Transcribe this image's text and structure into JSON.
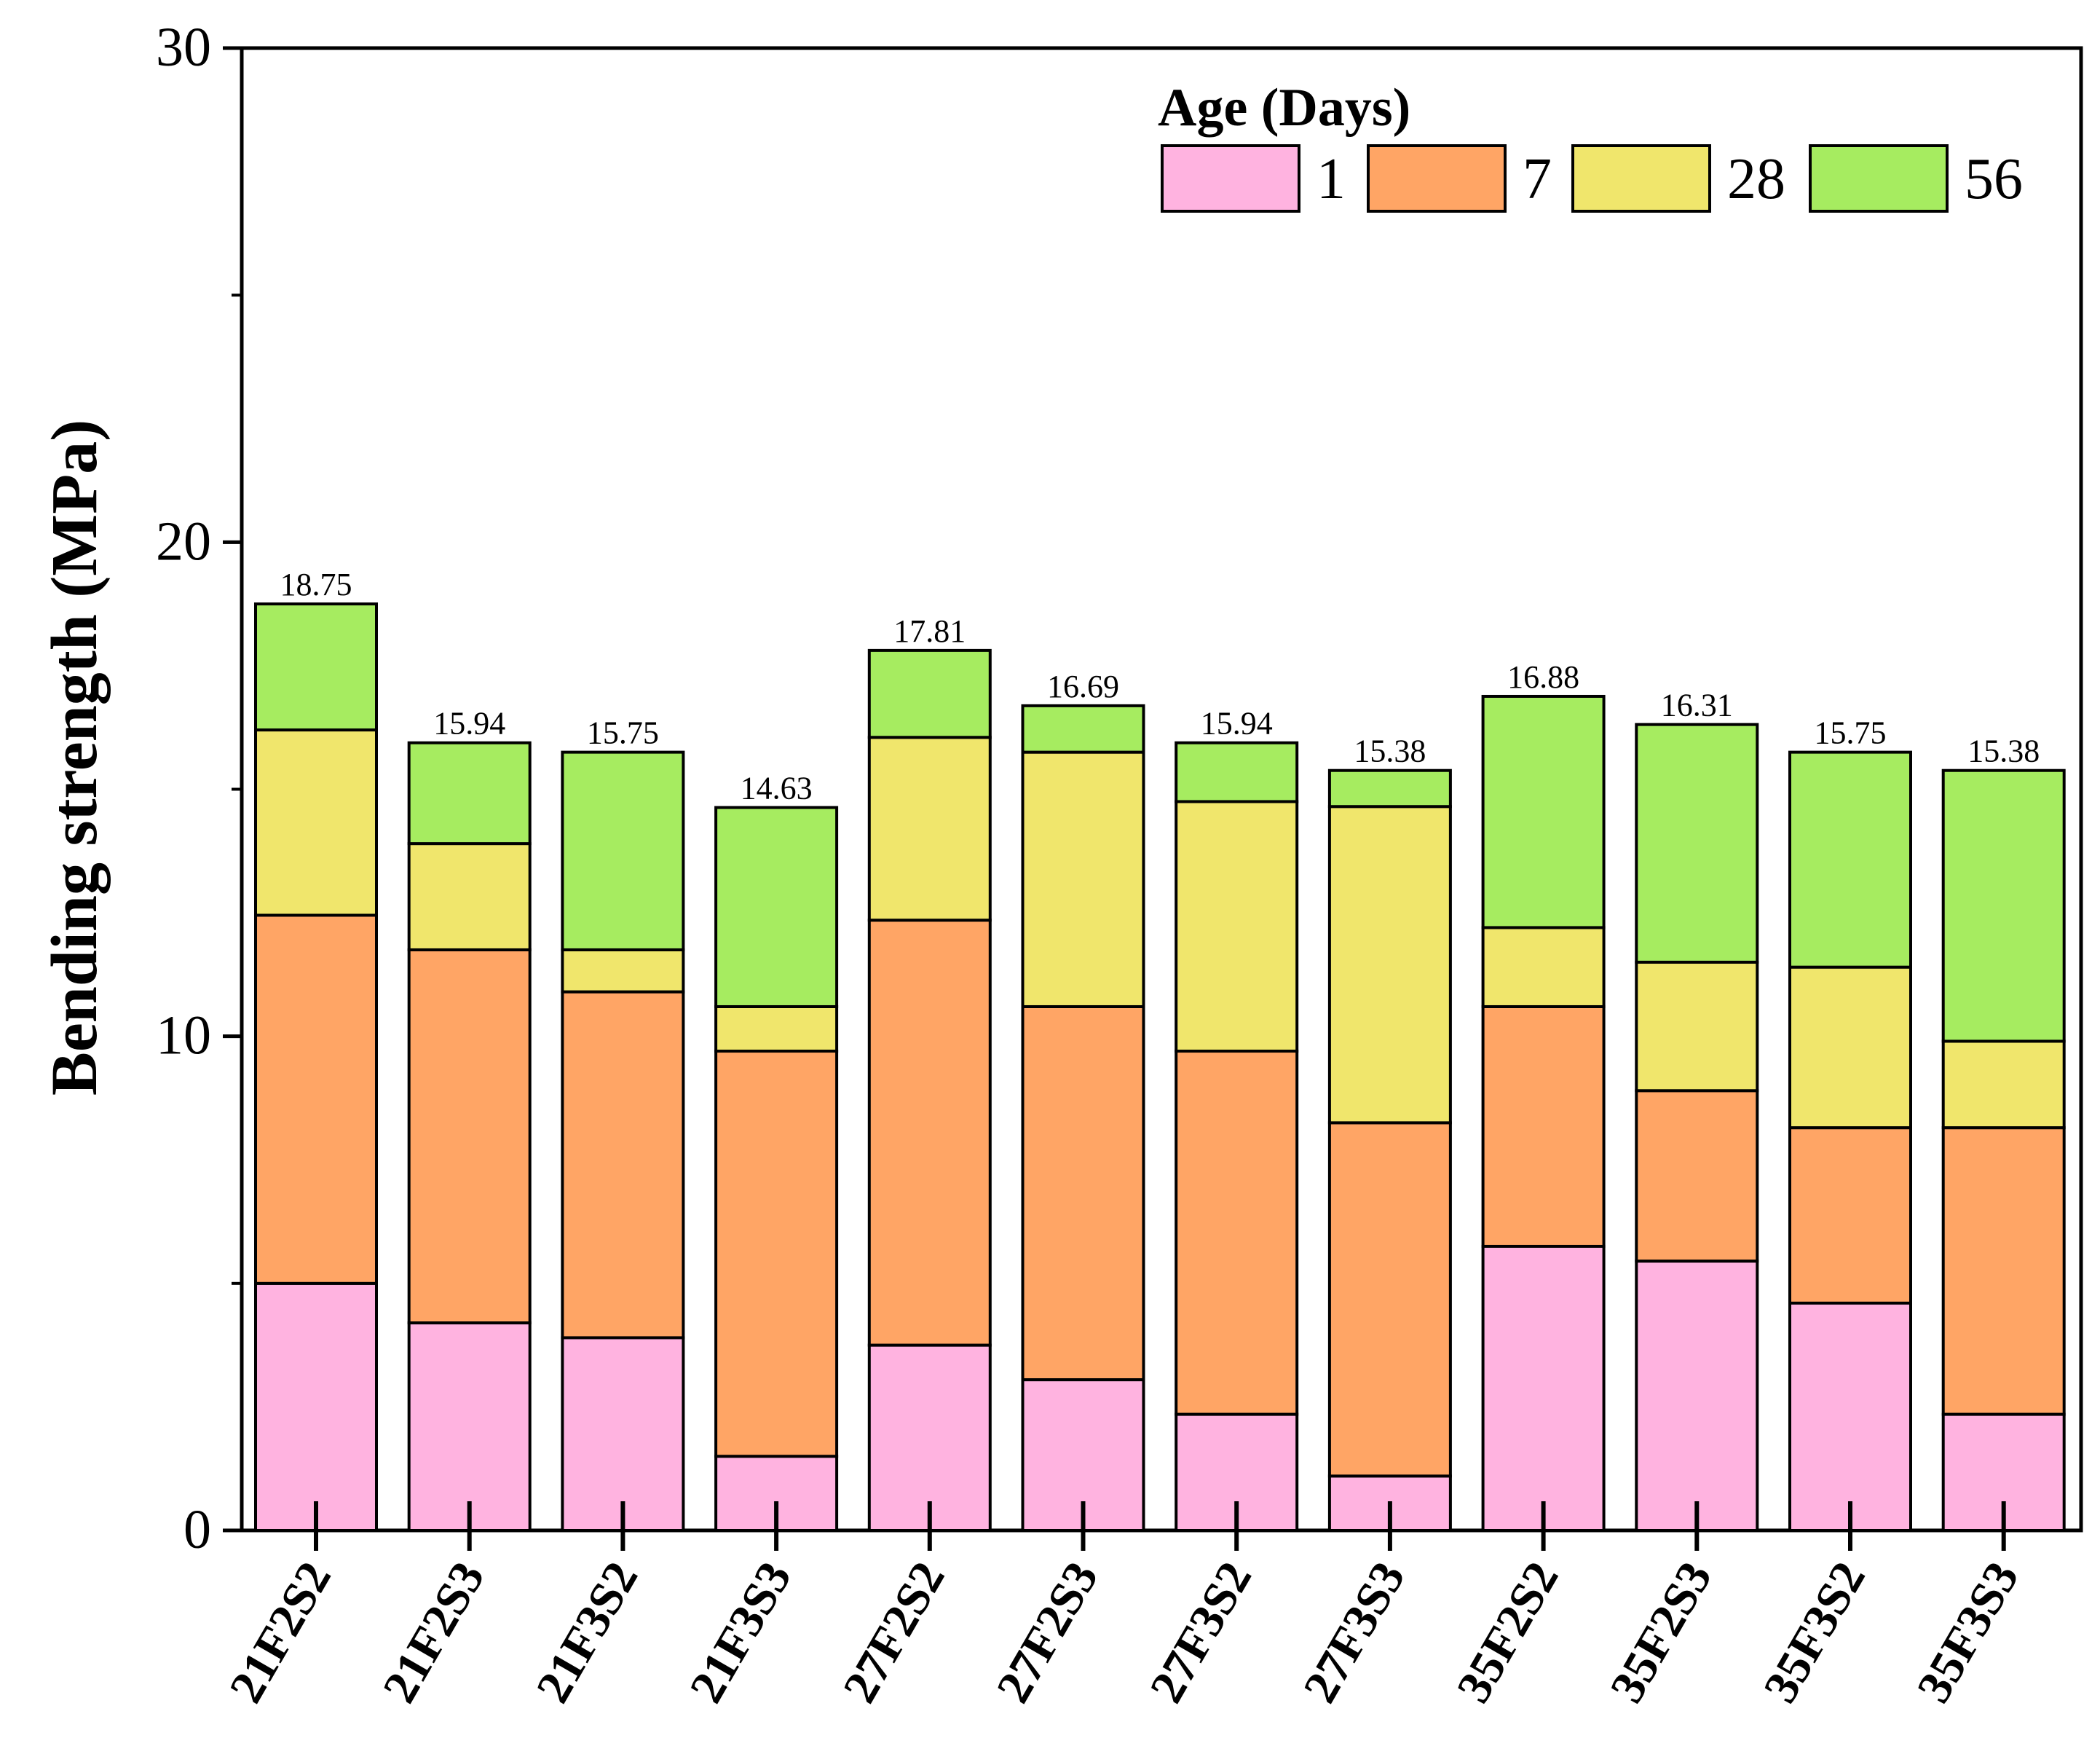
{
  "chart_data": {
    "type": "bar",
    "stacked": true,
    "title": "",
    "xlabel": "",
    "ylabel": "Bending strength (MPa)",
    "ylim": [
      0,
      30
    ],
    "yticks": [
      0,
      10,
      20,
      30
    ],
    "categories": [
      "21F2S2",
      "21F2S3",
      "21F3S2",
      "21F3S3",
      "27F2S2",
      "27F2S3",
      "27F3S2",
      "27F3S3",
      "35F2S2",
      "35F2S3",
      "35F3S2",
      "35F3S3"
    ],
    "legend": {
      "title": "Age (Days)",
      "position": "top-right"
    },
    "series": [
      {
        "name": "1",
        "color": "#FFB3E0",
        "values": [
          5.0,
          4.2,
          3.9,
          1.5,
          3.75,
          3.05,
          2.35,
          1.1,
          5.75,
          5.45,
          4.6,
          2.35
        ]
      },
      {
        "name": "7",
        "color": "#FFA565",
        "values": [
          7.45,
          7.55,
          7.0,
          8.2,
          8.6,
          7.55,
          7.35,
          7.15,
          4.85,
          3.45,
          3.55,
          5.8
        ]
      },
      {
        "name": "28",
        "color": "#F0E66C",
        "values": [
          3.75,
          2.15,
          0.85,
          0.9,
          3.7,
          5.15,
          5.05,
          6.4,
          1.6,
          2.6,
          3.25,
          1.75
        ]
      },
      {
        "name": "56",
        "color": "#A6EC60",
        "values": [
          2.55,
          2.04,
          4.0,
          4.03,
          1.76,
          0.94,
          1.19,
          0.73,
          4.68,
          4.81,
          4.35,
          5.48
        ]
      }
    ],
    "totals": [
      "18.75",
      "15.94",
      "15.75",
      "14.63",
      "17.81",
      "16.69",
      "15.94",
      "15.38",
      "16.88",
      "16.31",
      "15.75",
      "15.38"
    ]
  }
}
